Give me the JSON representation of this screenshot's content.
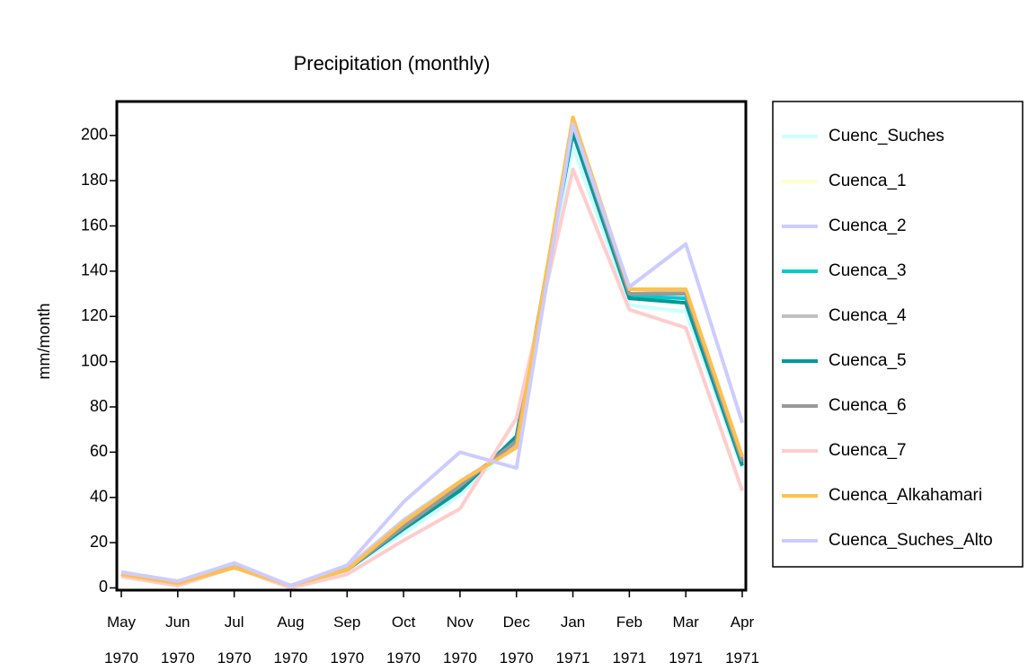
{
  "chart_data": {
    "type": "line",
    "title": "Precipitation (monthly)",
    "y_label": "mm/month",
    "categories": [
      "May 1970",
      "Jun 1970",
      "Jul 1970",
      "Aug 1970",
      "Sep 1970",
      "Oct 1970",
      "Nov 1970",
      "Dec 1970",
      "Jan 1971",
      "Feb 1971",
      "Mar 1971",
      "Apr 1971"
    ],
    "ylim": [
      -1,
      215
    ],
    "yticks": [
      0,
      20,
      40,
      60,
      80,
      100,
      120,
      140,
      160,
      180,
      200
    ],
    "legend": "right",
    "series": [
      {
        "name": "Cuenc_Suches",
        "color": "#ccffff",
        "values": [
          6,
          2,
          9,
          1,
          8,
          24,
          41,
          65,
          195,
          125,
          122,
          53
        ]
      },
      {
        "name": "Cuenca_1",
        "color": "#ffffcc",
        "values": [
          6,
          2,
          9,
          1,
          8,
          28,
          46,
          63,
          207,
          131,
          131,
          57
        ]
      },
      {
        "name": "Cuenca_2",
        "color": "#ccccff",
        "values": [
          6,
          2,
          10,
          1,
          9,
          30,
          47,
          63,
          206,
          132,
          132,
          58
        ]
      },
      {
        "name": "Cuenca_3",
        "color": "#00cccc",
        "values": [
          6,
          2,
          9,
          1,
          8,
          27,
          44,
          66,
          203,
          129,
          128,
          55
        ]
      },
      {
        "name": "Cuenca_4",
        "color": "#c0c0c0",
        "values": [
          6,
          2,
          9,
          1,
          8,
          28,
          45,
          64,
          206,
          130,
          131,
          57
        ]
      },
      {
        "name": "Cuenca_5",
        "color": "#009999",
        "values": [
          6,
          2,
          9,
          1,
          8,
          26,
          43,
          67,
          201,
          128,
          126,
          54
        ]
      },
      {
        "name": "Cuenca_6",
        "color": "#999999",
        "values": [
          6,
          2,
          9,
          1,
          8,
          27,
          45,
          65,
          205,
          130,
          130,
          56
        ]
      },
      {
        "name": "Cuenca_7",
        "color": "#ffcccc",
        "values": [
          5,
          1,
          9,
          0,
          6,
          21,
          35,
          75,
          185,
          123,
          115,
          43
        ]
      },
      {
        "name": "Cuenca_Alkahamari",
        "color": "#ffc04c",
        "values": [
          6,
          2,
          9,
          1,
          8,
          29,
          47,
          62,
          208,
          132,
          132,
          58
        ]
      },
      {
        "name": "Cuenca_Suches_Alto",
        "color": "#ccccff",
        "values": [
          7,
          3,
          11,
          1,
          10,
          38,
          60,
          53,
          205,
          133,
          152,
          73
        ]
      }
    ]
  }
}
